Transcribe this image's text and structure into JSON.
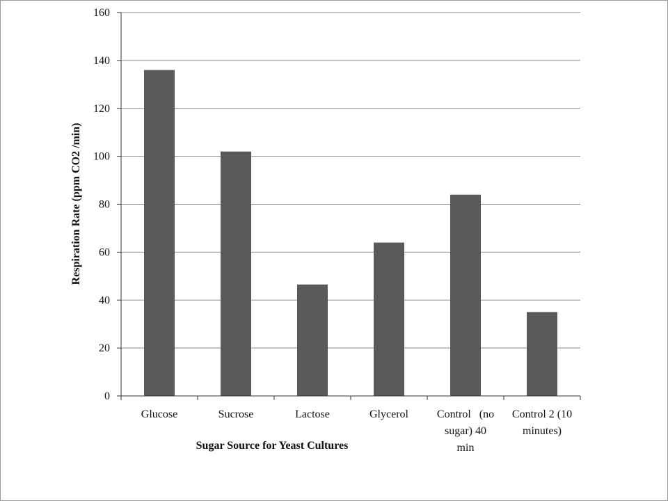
{
  "chart_data": {
    "type": "bar",
    "title": "",
    "xlabel": "Sugar Source for Yeast Cultures",
    "ylabel": "Respiration Rate (ppm CO2 /min)",
    "ylim": [
      0,
      160
    ],
    "yticks": [
      0,
      20,
      40,
      60,
      80,
      100,
      120,
      140,
      160
    ],
    "grid": true,
    "categories": [
      [
        "Glucose"
      ],
      [
        "Sucrose"
      ],
      [
        "Lactose"
      ],
      [
        "Glycerol"
      ],
      [
        "Control   (no",
        "sugar) 40",
        "min"
      ],
      [
        "Control 2 (10",
        "minutes)"
      ]
    ],
    "values": [
      136,
      102,
      46.5,
      64,
      84,
      35
    ],
    "bar_color": "#595959",
    "grid_color": "#888888"
  }
}
